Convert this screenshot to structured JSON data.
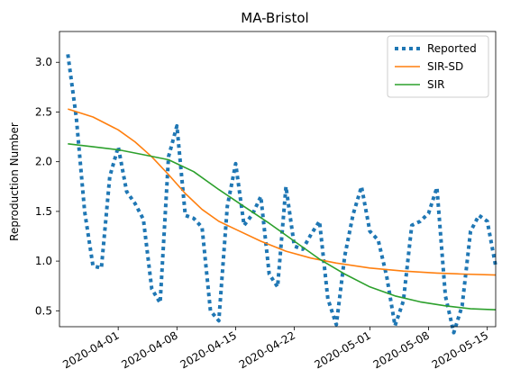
{
  "chart_data": {
    "type": "line",
    "title": "MA-Bristol",
    "xlabel": "",
    "ylabel": "Reproduction Number",
    "x_axis_type": "date",
    "xlim": [
      "2020-03-25",
      "2020-05-16"
    ],
    "ylim": [
      0.34,
      3.31
    ],
    "x_ticks": [
      "2020-04-01",
      "2020-04-08",
      "2020-04-15",
      "2020-04-22",
      "2020-05-01",
      "2020-05-08",
      "2020-05-15"
    ],
    "y_ticks": [
      0.5,
      1.0,
      1.5,
      2.0,
      2.5,
      3.0
    ],
    "grid": false,
    "legend_position": "top-right",
    "series": [
      {
        "name": "Reported",
        "color": "#1f77b4",
        "style": "dotted",
        "points": [
          [
            "2020-03-26",
            3.08
          ],
          [
            "2020-03-27",
            2.45
          ],
          [
            "2020-03-28",
            1.5
          ],
          [
            "2020-03-29",
            0.95
          ],
          [
            "2020-03-30",
            0.93
          ],
          [
            "2020-03-31",
            1.85
          ],
          [
            "2020-04-01",
            2.15
          ],
          [
            "2020-04-02",
            1.7
          ],
          [
            "2020-04-03",
            1.58
          ],
          [
            "2020-04-04",
            1.42
          ],
          [
            "2020-04-05",
            0.72
          ],
          [
            "2020-04-06",
            0.58
          ],
          [
            "2020-04-07",
            2.05
          ],
          [
            "2020-04-08",
            2.36
          ],
          [
            "2020-04-09",
            1.46
          ],
          [
            "2020-04-10",
            1.43
          ],
          [
            "2020-04-11",
            1.34
          ],
          [
            "2020-04-12",
            0.5
          ],
          [
            "2020-04-13",
            0.4
          ],
          [
            "2020-04-14",
            1.55
          ],
          [
            "2020-04-15",
            1.98
          ],
          [
            "2020-04-16",
            1.36
          ],
          [
            "2020-04-17",
            1.47
          ],
          [
            "2020-04-18",
            1.65
          ],
          [
            "2020-04-19",
            0.87
          ],
          [
            "2020-04-20",
            0.74
          ],
          [
            "2020-04-21",
            1.75
          ],
          [
            "2020-04-22",
            1.15
          ],
          [
            "2020-04-23",
            1.12
          ],
          [
            "2020-04-24",
            1.27
          ],
          [
            "2020-04-25",
            1.4
          ],
          [
            "2020-04-26",
            0.62
          ],
          [
            "2020-04-27",
            0.36
          ],
          [
            "2020-04-28",
            1.05
          ],
          [
            "2020-04-29",
            1.47
          ],
          [
            "2020-04-30",
            1.75
          ],
          [
            "2020-05-01",
            1.3
          ],
          [
            "2020-05-02",
            1.21
          ],
          [
            "2020-05-03",
            0.85
          ],
          [
            "2020-05-04",
            0.35
          ],
          [
            "2020-05-05",
            0.6
          ],
          [
            "2020-05-06",
            1.36
          ],
          [
            "2020-05-07",
            1.4
          ],
          [
            "2020-05-08",
            1.48
          ],
          [
            "2020-05-09",
            1.74
          ],
          [
            "2020-05-10",
            0.65
          ],
          [
            "2020-05-11",
            0.28
          ],
          [
            "2020-05-12",
            0.55
          ],
          [
            "2020-05-13",
            1.3
          ],
          [
            "2020-05-14",
            1.46
          ],
          [
            "2020-05-15",
            1.4
          ],
          [
            "2020-05-16",
            0.95
          ]
        ]
      },
      {
        "name": "SIR-SD",
        "color": "#ff7f0e",
        "style": "solid",
        "points": [
          [
            "2020-03-26",
            2.53
          ],
          [
            "2020-03-29",
            2.45
          ],
          [
            "2020-04-01",
            2.32
          ],
          [
            "2020-04-03",
            2.2
          ],
          [
            "2020-04-05",
            2.05
          ],
          [
            "2020-04-07",
            1.87
          ],
          [
            "2020-04-09",
            1.68
          ],
          [
            "2020-04-11",
            1.52
          ],
          [
            "2020-04-13",
            1.4
          ],
          [
            "2020-04-15",
            1.32
          ],
          [
            "2020-04-18",
            1.2
          ],
          [
            "2020-04-21",
            1.1
          ],
          [
            "2020-04-24",
            1.03
          ],
          [
            "2020-04-27",
            0.98
          ],
          [
            "2020-05-01",
            0.93
          ],
          [
            "2020-05-05",
            0.9
          ],
          [
            "2020-05-09",
            0.88
          ],
          [
            "2020-05-12",
            0.87
          ],
          [
            "2020-05-16",
            0.86
          ]
        ]
      },
      {
        "name": "SIR",
        "color": "#2ca02c",
        "style": "solid",
        "points": [
          [
            "2020-03-26",
            2.18
          ],
          [
            "2020-03-29",
            2.15
          ],
          [
            "2020-04-01",
            2.12
          ],
          [
            "2020-04-04",
            2.07
          ],
          [
            "2020-04-07",
            2.02
          ],
          [
            "2020-04-10",
            1.9
          ],
          [
            "2020-04-13",
            1.72
          ],
          [
            "2020-04-16",
            1.55
          ],
          [
            "2020-04-19",
            1.38
          ],
          [
            "2020-04-22",
            1.2
          ],
          [
            "2020-04-25",
            1.02
          ],
          [
            "2020-04-28",
            0.87
          ],
          [
            "2020-05-01",
            0.74
          ],
          [
            "2020-05-04",
            0.65
          ],
          [
            "2020-05-07",
            0.59
          ],
          [
            "2020-05-10",
            0.55
          ],
          [
            "2020-05-13",
            0.52
          ],
          [
            "2020-05-16",
            0.51
          ]
        ]
      }
    ]
  }
}
